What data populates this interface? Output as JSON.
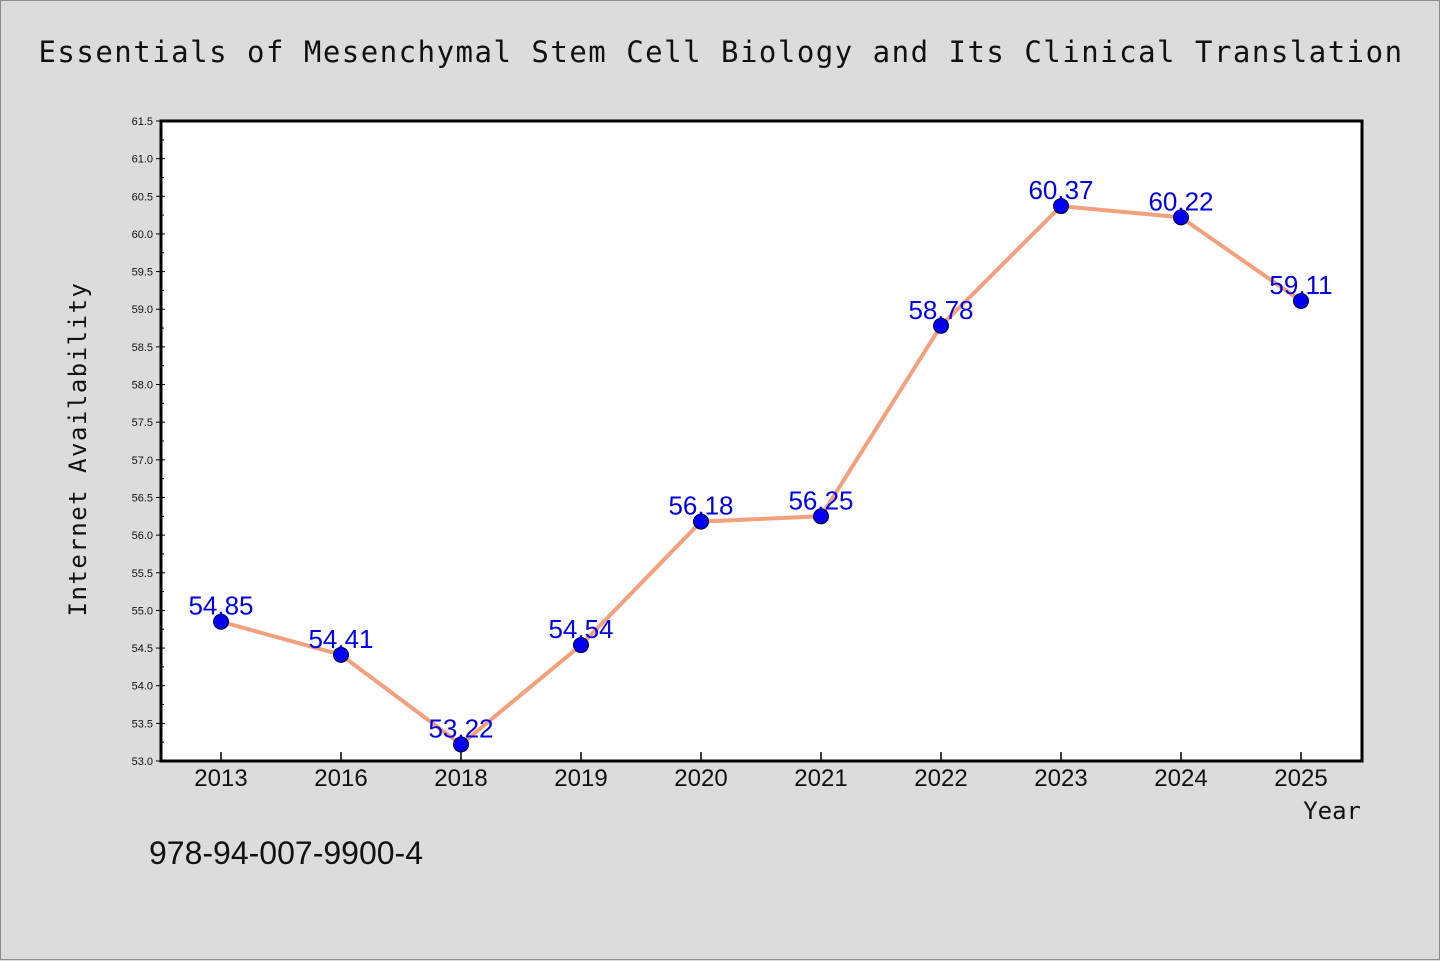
{
  "chart_data": {
    "type": "line",
    "title": "Essentials of Mesenchymal Stem Cell Biology and Its Clinical Translation",
    "xlabel": "Year",
    "ylabel": "Internet Availability",
    "categories": [
      "2013",
      "2016",
      "2018",
      "2019",
      "2020",
      "2021",
      "2022",
      "2023",
      "2024",
      "2025"
    ],
    "series": [
      {
        "values": [
          54.85,
          54.41,
          53.22,
          54.54,
          56.18,
          56.25,
          58.78,
          60.37,
          60.22,
          59.11
        ],
        "labels": [
          "54.85",
          "54.41",
          "53.22",
          "54.54",
          "56.18",
          "56.25",
          "58.78",
          "60.37",
          "60.22",
          "59.11"
        ]
      }
    ],
    "ylim": [
      53.0,
      61.5
    ],
    "yticks": [
      "53.0",
      "53.5",
      "54.0",
      "54.5",
      "55.0",
      "55.5",
      "56.0",
      "56.5",
      "57.0",
      "57.5",
      "58.0",
      "58.5",
      "59.0",
      "59.5",
      "60.0",
      "60.5",
      "61.0",
      "61.5"
    ],
    "grid": false,
    "legend": "none",
    "colors": {
      "line": "#f4a07c",
      "marker": "#0000ee",
      "data_label": "#0000ee",
      "axes": "#000000",
      "plot_background": "#ffffff",
      "figure_background": "#dcdcdc"
    }
  },
  "footnote": "978-94-007-9900-4"
}
